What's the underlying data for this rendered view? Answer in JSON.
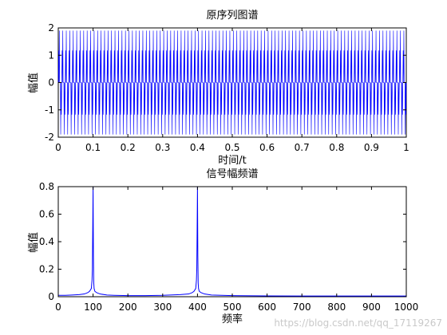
{
  "watermark": "https://blog.csdn.net/qq_17119267",
  "chart_data": [
    {
      "type": "line",
      "title": "原序列图谱",
      "xlabel": "时间/t",
      "ylabel": "幅值",
      "xlim": [
        0,
        1
      ],
      "ylim": [
        -2,
        2
      ],
      "xticks": [
        "0",
        "0.1",
        "0.2",
        "0.3",
        "0.4",
        "0.5",
        "0.6",
        "0.7",
        "0.8",
        "0.9",
        "1"
      ],
      "yticks": [
        "-2",
        "-1",
        "0",
        "1",
        "2"
      ],
      "grid": false,
      "color": "#0000ff",
      "signal": "sum of two unit-amplitude sinusoids (100 Hz and 400 Hz), peak amplitude about 1.9, shown from t = 0 to t = 1",
      "series": [
        {
          "components": [
            {
              "frequency": 100,
              "amplitude": 1
            },
            {
              "frequency": 400,
              "amplitude": 1
            }
          ]
        }
      ]
    },
    {
      "type": "line",
      "title": "信号幅频谱",
      "xlabel": "频率",
      "ylabel": "幅值",
      "xlim": [
        0,
        1000
      ],
      "ylim": [
        0,
        0.8
      ],
      "xticks": [
        "0",
        "100",
        "200",
        "300",
        "400",
        "500",
        "600",
        "700",
        "800",
        "900",
        "1000"
      ],
      "yticks": [
        "0",
        "0.2",
        "0.4",
        "0.6",
        "0.8"
      ],
      "grid": false,
      "color": "#0000ff",
      "series": [
        {
          "x": [
            0,
            20,
            40,
            60,
            75,
            85,
            90,
            95,
            97,
            98,
            99,
            100,
            101,
            102,
            103,
            105,
            110,
            120,
            140,
            160,
            200,
            250,
            300,
            350,
            375,
            385,
            390,
            395,
            397,
            398,
            399,
            400,
            401,
            402,
            403,
            405,
            410,
            420,
            440,
            470,
            500,
            600,
            700,
            800,
            900,
            1000
          ],
          "y": [
            0.01,
            0.01,
            0.012,
            0.015,
            0.02,
            0.03,
            0.04,
            0.06,
            0.12,
            0.2,
            0.48,
            0.8,
            0.3,
            0.1,
            0.06,
            0.04,
            0.03,
            0.02,
            0.012,
            0.01,
            0.008,
            0.008,
            0.01,
            0.015,
            0.02,
            0.03,
            0.04,
            0.06,
            0.12,
            0.2,
            0.48,
            0.8,
            0.3,
            0.1,
            0.06,
            0.04,
            0.03,
            0.02,
            0.012,
            0.01,
            0.008,
            0.006,
            0.005,
            0.005,
            0.005,
            0.005
          ]
        }
      ]
    }
  ]
}
